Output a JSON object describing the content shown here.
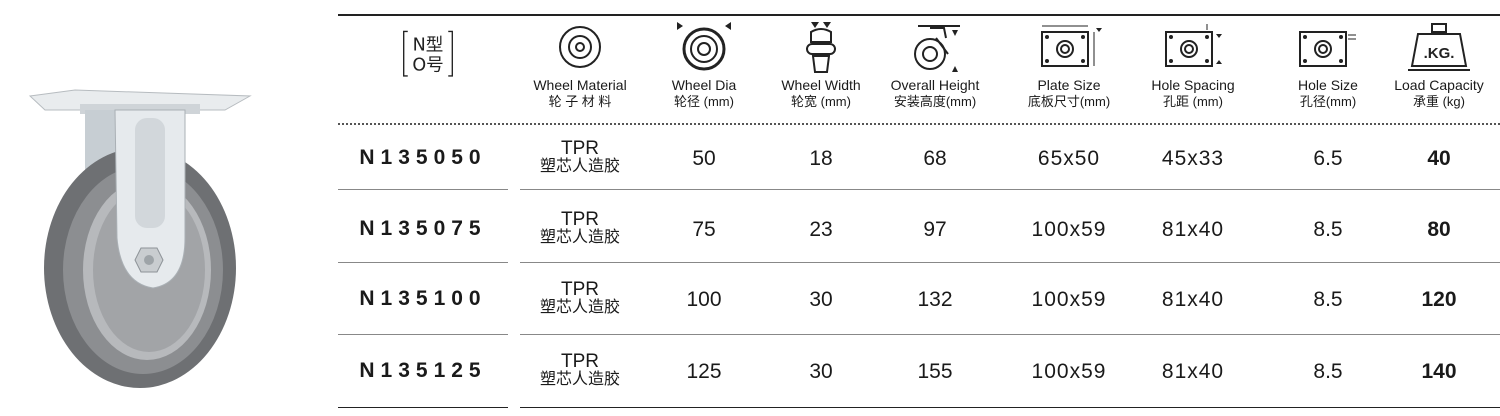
{
  "header": {
    "model_mark_top": "N型",
    "model_mark_bottom": "O号",
    "columns": [
      {
        "key": "model",
        "en": "",
        "cn": ""
      },
      {
        "key": "material",
        "en": "Wheel Material",
        "cn": "轮 子 材 料"
      },
      {
        "key": "dia",
        "en": "Wheel Dia",
        "cn": "轮径 (mm)"
      },
      {
        "key": "width",
        "en": "Wheel Width",
        "cn": "轮宽 (mm)"
      },
      {
        "key": "height",
        "en": "Overall Height",
        "cn": "安装高度(mm)"
      },
      {
        "key": "plate",
        "en": "Plate Size",
        "cn": "底板尺寸(mm)"
      },
      {
        "key": "spacing",
        "en": "Hole Spacing",
        "cn": "孔距 (mm)"
      },
      {
        "key": "hole",
        "en": "Hole Size",
        "cn": "孔径(mm)"
      },
      {
        "key": "load",
        "en": "Load Capacity",
        "cn": "承重 (kg)"
      }
    ],
    "load_icon_text": ".KG."
  },
  "rows": [
    {
      "model": "N135050",
      "material_en": "TPR",
      "material_cn": "塑芯人造胶",
      "dia": "50",
      "width": "18",
      "height": "68",
      "plate": "65x50",
      "spacing": "45x33",
      "hole": "6.5",
      "load": "40"
    },
    {
      "model": "N135075",
      "material_en": "TPR",
      "material_cn": "塑芯人造胶",
      "dia": "75",
      "width": "23",
      "height": "97",
      "plate": "100x59",
      "spacing": "81x40",
      "hole": "8.5",
      "load": "80"
    },
    {
      "model": "N135100",
      "material_en": "TPR",
      "material_cn": "塑芯人造胶",
      "dia": "100",
      "width": "30",
      "height": "132",
      "plate": "100x59",
      "spacing": "81x40",
      "hole": "8.5",
      "load": "120"
    },
    {
      "model": "N135125",
      "material_en": "TPR",
      "material_cn": "塑芯人造胶",
      "dia": "125",
      "width": "30",
      "height": "155",
      "plate": "100x59",
      "spacing": "81x40",
      "hole": "8.5",
      "load": "140"
    }
  ],
  "colors": {
    "wheel": "#7d7f82",
    "wheel_inner": "#9a9c9f",
    "bracket": "#dfe3e6",
    "line": "#222222"
  }
}
